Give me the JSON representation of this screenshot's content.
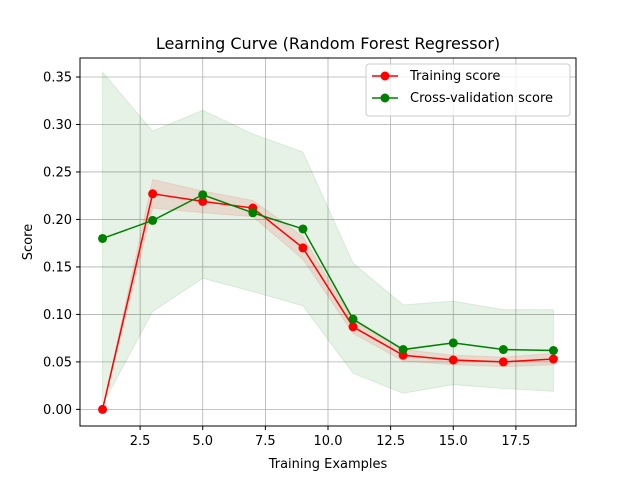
{
  "chart_data": {
    "type": "line",
    "title": "Learning Curve (Random Forest Regressor)",
    "xlabel": "Training Examples",
    "ylabel": "Score",
    "xlim": [
      0.1,
      19.9
    ],
    "ylim": [
      -0.0175,
      0.37
    ],
    "xticks": [
      2.5,
      5.0,
      7.5,
      10.0,
      12.5,
      15.0,
      17.5
    ],
    "xtick_labels": [
      "2.5",
      "5.0",
      "7.5",
      "10.0",
      "12.5",
      "15.0",
      "17.5"
    ],
    "yticks": [
      0.0,
      0.05,
      0.1,
      0.15,
      0.2,
      0.25,
      0.3,
      0.35
    ],
    "ytick_labels": [
      "0.00",
      "0.05",
      "0.10",
      "0.15",
      "0.20",
      "0.25",
      "0.30",
      "0.35"
    ],
    "grid": true,
    "legend_position": "top-right",
    "x": [
      1,
      3,
      5,
      7,
      9,
      11,
      13,
      15,
      17,
      19
    ],
    "series": [
      {
        "name": "Training score",
        "color": "#ff0000",
        "values": [
          0.0,
          0.227,
          0.219,
          0.212,
          0.17,
          0.087,
          0.057,
          0.052,
          0.05,
          0.053
        ],
        "band_lower": [
          0.0,
          0.212,
          0.207,
          0.203,
          0.158,
          0.08,
          0.051,
          0.047,
          0.045,
          0.047
        ],
        "band_upper": [
          0.0,
          0.242,
          0.23,
          0.22,
          0.182,
          0.093,
          0.063,
          0.057,
          0.055,
          0.059
        ]
      },
      {
        "name": "Cross-validation score",
        "color": "#008000",
        "values": [
          0.18,
          0.199,
          0.226,
          0.207,
          0.19,
          0.095,
          0.063,
          0.07,
          0.063,
          0.062
        ],
        "band_lower": [
          0.005,
          0.103,
          0.138,
          0.124,
          0.109,
          0.038,
          0.017,
          0.026,
          0.022,
          0.019
        ],
        "band_upper": [
          0.355,
          0.293,
          0.315,
          0.29,
          0.271,
          0.154,
          0.11,
          0.114,
          0.105,
          0.105
        ]
      }
    ]
  }
}
